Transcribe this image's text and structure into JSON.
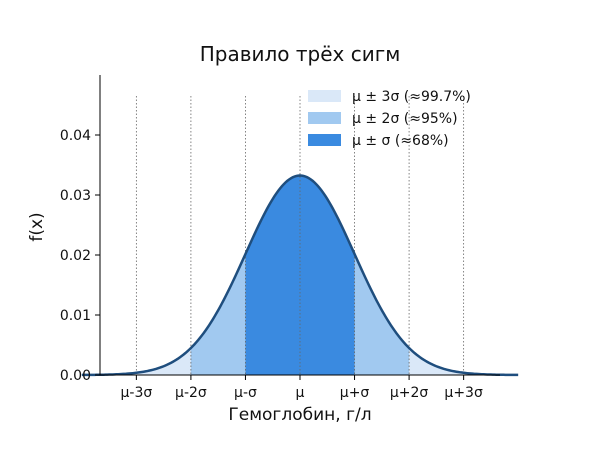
{
  "chart_data": {
    "type": "area",
    "title": "Правило трёх сигм",
    "xlabel": "Гемоглобин, г/л",
    "ylabel": "f(x)",
    "distribution": {
      "mean": 0,
      "sd": 12
    },
    "xlim": [
      -44,
      44
    ],
    "ylim": [
      0,
      0.05
    ],
    "yticks": [
      0.0,
      0.01,
      0.02,
      0.03,
      0.04
    ],
    "ytick_labels": [
      "0.00",
      "0.01",
      "0.02",
      "0.03",
      "0.04"
    ],
    "xticks": [
      -36,
      -24,
      -12,
      0,
      12,
      24,
      36
    ],
    "xtick_labels": [
      "μ-3σ",
      "μ-2σ",
      "μ-σ",
      "μ",
      "μ+σ",
      "μ+2σ",
      "μ+3σ"
    ],
    "vlines": [
      -36,
      -24,
      -12,
      0,
      12,
      24,
      36
    ],
    "curve_range": [
      -48,
      48
    ],
    "bands": [
      {
        "name": "μ ± 3σ  (≈99.7%)",
        "from": -36,
        "to": 36,
        "color": "#dae8f8"
      },
      {
        "name": "μ ± 2σ  (≈95%)",
        "from": -24,
        "to": 24,
        "color": "#a1c9f0"
      },
      {
        "name": "μ ± σ  (≈68%)",
        "from": -12,
        "to": 12,
        "color": "#3a8ae0"
      }
    ],
    "curve_color": "#1f4e7e",
    "grid": false,
    "legend_position": "top-right"
  }
}
